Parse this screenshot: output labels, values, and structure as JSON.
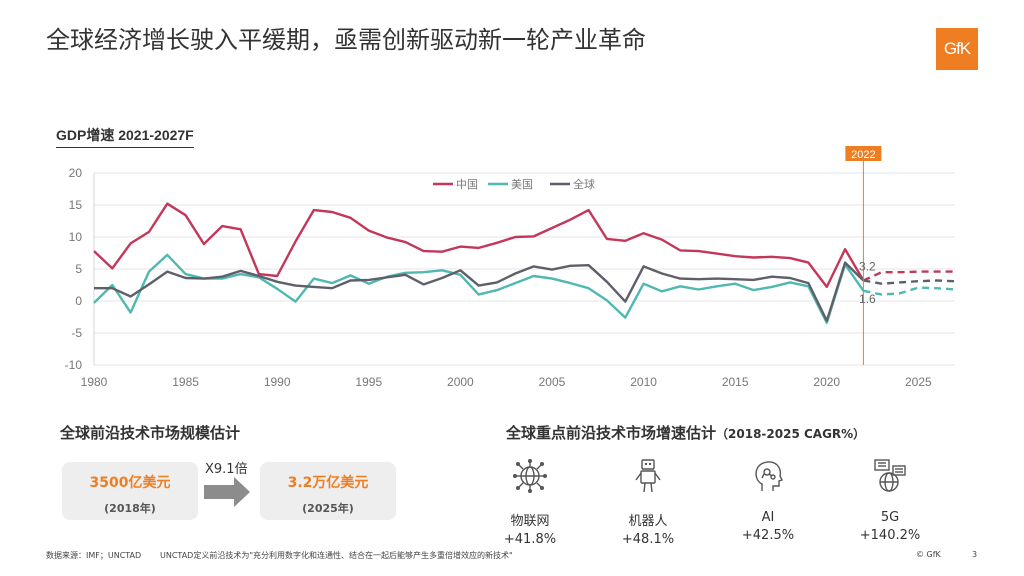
{
  "title": "全球经济增长驶入平缓期，亟需创新驱动新一轮产业革命",
  "logo_text": "GfK",
  "chart_title": "GDP增速 2021-2027F",
  "colors": {
    "china": "#c2375a",
    "usa": "#4fb8b0",
    "world": "#5f5f6a",
    "accent": "#ef7d22"
  },
  "chart_data": {
    "type": "line",
    "title": "GDP增速 2021-2027F",
    "xlim": [
      1980,
      2027
    ],
    "ylim": [
      -10,
      20
    ],
    "yticks": [
      20,
      15,
      10,
      5,
      0,
      -5,
      -10
    ],
    "xticks": [
      1980,
      1985,
      1990,
      1995,
      2000,
      2005,
      2010,
      2015,
      2020,
      2025
    ],
    "grid": true,
    "legend_position": "top-center",
    "forecast_start": 2022,
    "marker_label": "2022",
    "annotations": [
      {
        "x": 2022,
        "y": 3.2,
        "text": "3.2"
      },
      {
        "x": 2022,
        "y": 1.6,
        "text": "1.6"
      }
    ],
    "series": [
      {
        "name": "中国",
        "color": "#c2375a",
        "x": [
          1980,
          1981,
          1982,
          1983,
          1984,
          1985,
          1986,
          1987,
          1988,
          1989,
          1990,
          1991,
          1992,
          1993,
          1994,
          1995,
          1996,
          1997,
          1998,
          1999,
          2000,
          2001,
          2002,
          2003,
          2004,
          2005,
          2006,
          2007,
          2008,
          2009,
          2010,
          2011,
          2012,
          2013,
          2014,
          2015,
          2016,
          2017,
          2018,
          2019,
          2020,
          2021,
          2022,
          2023,
          2024,
          2025,
          2026,
          2027
        ],
        "y": [
          7.8,
          5.1,
          9.0,
          10.8,
          15.2,
          13.4,
          8.9,
          11.7,
          11.2,
          4.2,
          3.9,
          9.3,
          14.2,
          13.9,
          13.0,
          11.0,
          9.9,
          9.2,
          7.8,
          7.7,
          8.5,
          8.3,
          9.1,
          10.0,
          10.1,
          11.4,
          12.7,
          14.2,
          9.7,
          9.4,
          10.6,
          9.6,
          7.9,
          7.8,
          7.4,
          7.0,
          6.8,
          6.9,
          6.7,
          6.0,
          2.2,
          8.1,
          3.2,
          4.5,
          4.5,
          4.6,
          4.6,
          4.6
        ]
      },
      {
        "name": "美国",
        "color": "#4fb8b0",
        "x": [
          1980,
          1981,
          1982,
          1983,
          1984,
          1985,
          1986,
          1987,
          1988,
          1989,
          1990,
          1991,
          1992,
          1993,
          1994,
          1995,
          1996,
          1997,
          1998,
          1999,
          2000,
          2001,
          2002,
          2003,
          2004,
          2005,
          2006,
          2007,
          2008,
          2009,
          2010,
          2011,
          2012,
          2013,
          2014,
          2015,
          2016,
          2017,
          2018,
          2019,
          2020,
          2021,
          2022,
          2023,
          2024,
          2025,
          2026,
          2027
        ],
        "y": [
          -0.3,
          2.5,
          -1.8,
          4.6,
          7.2,
          4.2,
          3.5,
          3.5,
          4.2,
          3.7,
          1.9,
          -0.1,
          3.5,
          2.8,
          4.0,
          2.7,
          3.8,
          4.4,
          4.5,
          4.8,
          4.1,
          1.0,
          1.7,
          2.8,
          3.9,
          3.5,
          2.8,
          2.0,
          0.1,
          -2.6,
          2.7,
          1.5,
          2.3,
          1.8,
          2.3,
          2.7,
          1.7,
          2.2,
          2.9,
          2.3,
          -3.4,
          5.7,
          1.6,
          1.0,
          1.2,
          2.1,
          2.0,
          1.8
        ]
      },
      {
        "name": "全球",
        "color": "#5f5f6a",
        "x": [
          1980,
          1981,
          1982,
          1983,
          1984,
          1985,
          1986,
          1987,
          1988,
          1989,
          1990,
          1991,
          1992,
          1993,
          1994,
          1995,
          1996,
          1997,
          1998,
          1999,
          2000,
          2001,
          2002,
          2003,
          2004,
          2005,
          2006,
          2007,
          2008,
          2009,
          2010,
          2011,
          2012,
          2013,
          2014,
          2015,
          2016,
          2017,
          2018,
          2019,
          2020,
          2021,
          2022,
          2023,
          2024,
          2025,
          2026,
          2027
        ],
        "y": [
          2.0,
          2.0,
          0.7,
          2.6,
          4.6,
          3.6,
          3.5,
          3.8,
          4.7,
          3.9,
          3.0,
          2.4,
          2.2,
          2.0,
          3.2,
          3.3,
          3.7,
          4.1,
          2.6,
          3.6,
          4.8,
          2.4,
          2.9,
          4.3,
          5.4,
          4.9,
          5.5,
          5.6,
          3.0,
          -0.1,
          5.4,
          4.3,
          3.5,
          3.4,
          3.5,
          3.4,
          3.3,
          3.8,
          3.6,
          2.8,
          -3.1,
          6.0,
          3.2,
          2.7,
          2.9,
          3.1,
          3.2,
          3.1
        ]
      }
    ]
  },
  "left_section": {
    "title": "全球前沿技术市场规模估计",
    "multiplier": "X9.1倍",
    "box1": {
      "value": "3500亿美元",
      "year": "(2018年)"
    },
    "box2": {
      "value": "3.2万亿美元",
      "year": "(2025年)"
    }
  },
  "right_section": {
    "title": "全球重点前沿技术市场增速估计",
    "note": "（2018-2025 CAGR%）",
    "items": [
      {
        "name": "物联网",
        "growth": "+41.8%",
        "icon": "iot-network-icon"
      },
      {
        "name": "机器人",
        "growth": "+48.1%",
        "icon": "robot-icon"
      },
      {
        "name": "AI",
        "growth": "+42.5%",
        "icon": "ai-head-icon"
      },
      {
        "name": "5G",
        "growth": "+140.2%",
        "icon": "5g-globe-icon"
      }
    ]
  },
  "footer": {
    "source": "数据来源：IMF；UNCTAD",
    "note": "UNCTAD定义前沿技术为\"充分利用数字化和连通性、结合在一起后能够产生多重倍增效应的新技术\"",
    "copyright": "© GfK",
    "page": "3"
  }
}
